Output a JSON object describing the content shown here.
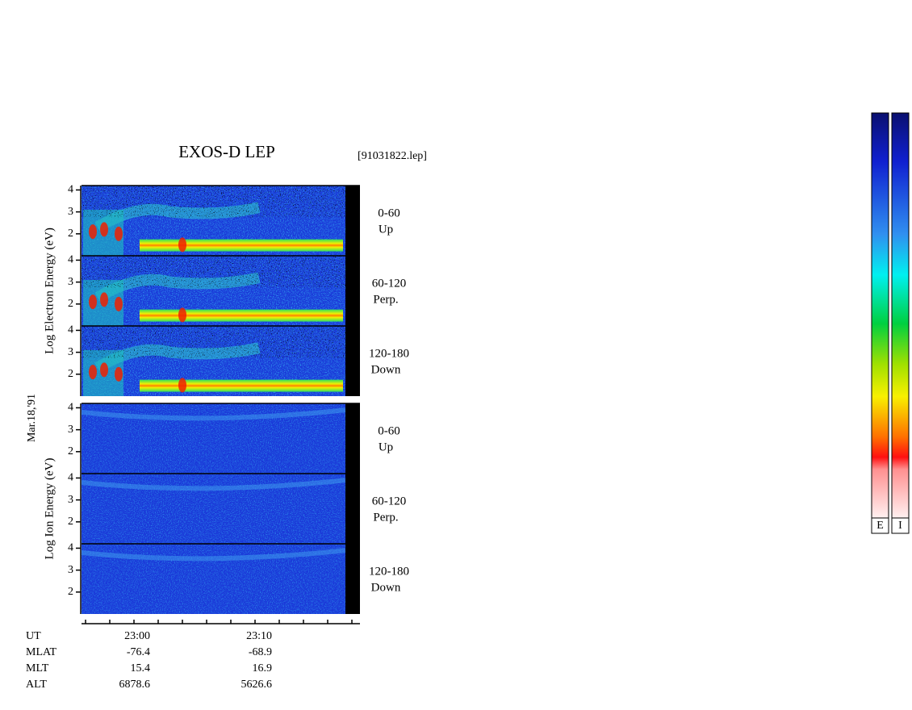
{
  "chart_data": {
    "type": "spectrogram",
    "title": "EXOS-D LEP",
    "file": "[91031822.lep]",
    "date": "Mar.18,'91",
    "ylim": [
      1,
      4.2
    ],
    "yticks": [
      2,
      3,
      4
    ],
    "groups": [
      {
        "ylabel": "Log  Electron  Energy (eV)",
        "panels": [
          {
            "label": "0-60",
            "sublabel": "Up"
          },
          {
            "label": "60-120",
            "sublabel": "Perp."
          },
          {
            "label": "120-180",
            "sublabel": "Down"
          }
        ]
      },
      {
        "ylabel": "Log  Ion  Energy (eV)",
        "panels": [
          {
            "label": "0-60",
            "sublabel": "Up"
          },
          {
            "label": "60-120",
            "sublabel": "Perp."
          },
          {
            "label": "120-180",
            "sublabel": "Down"
          }
        ]
      }
    ],
    "ephemeris": {
      "rows": [
        [
          "UT",
          "23:00",
          "23:10"
        ],
        [
          "MLAT",
          -76.4,
          -68.9
        ],
        [
          "MLT",
          15.4,
          16.9
        ],
        [
          "ALT",
          6878.6,
          5626.6
        ]
      ]
    },
    "colorbars": [
      "E",
      "I"
    ]
  }
}
